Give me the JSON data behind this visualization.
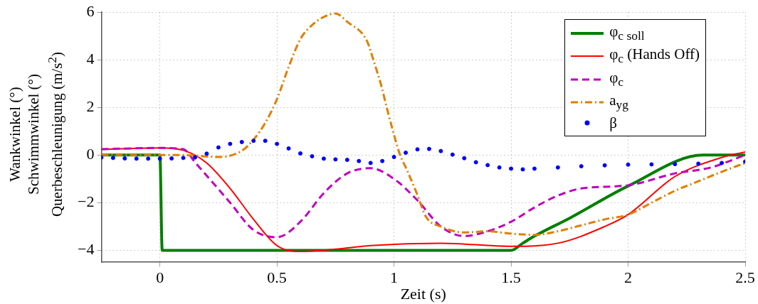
{
  "chart_data": {
    "type": "line",
    "xlabel": "Zeit (s)",
    "ylabel": "Wankwinkel (°)\nSchwimmwinkel (°)\nQuerbeschleunigung (m/s$^{2}$)",
    "xlim": [
      -0.25,
      2.5
    ],
    "xticks": [
      0,
      0.5,
      1,
      1.5,
      2,
      2.5
    ],
    "ylim": [
      -4.5,
      6
    ],
    "yticks": [
      -4,
      -2,
      0,
      2,
      4,
      6
    ],
    "grid": true,
    "legend": "top right",
    "series": [
      {
        "name": "φ$_{c soll}$",
        "color": "#007f00",
        "line_style": "solid",
        "marker": "none",
        "x": [
          -0.25,
          0,
          0.01,
          1.5,
          1.55,
          1.6,
          1.75,
          2,
          2.32,
          2.5
        ],
        "values": [
          0,
          0,
          -4,
          -4,
          -3.7,
          -3.4,
          -2.65,
          -1.3,
          0,
          0
        ]
      },
      {
        "name": "φ$_{c}$ (Hands Off)",
        "color": "#ff0000",
        "line_style": "solid",
        "marker": "none",
        "x": [
          -0.25,
          0,
          0.1,
          0.2,
          0.3,
          0.4,
          0.5,
          0.6,
          0.75,
          0.9,
          1.2,
          1.5,
          1.7,
          1.9,
          2,
          2.2,
          2.4,
          2.5
        ],
        "values": [
          0.24,
          0.3,
          0.2,
          -0.33,
          -1.4,
          -2.7,
          -3.8,
          -4.05,
          -3.95,
          -3.8,
          -3.7,
          -3.83,
          -3.7,
          -3,
          -2.5,
          -0.9,
          -0.1,
          0.13
        ]
      },
      {
        "name": "φ$_{c}$",
        "color": "#bf00bf",
        "line_style": "dashed",
        "marker": "none",
        "x": [
          -0.25,
          0,
          0.1,
          0.15,
          0.3,
          0.4,
          0.5,
          0.6,
          0.7,
          0.8,
          0.9,
          1,
          1.1,
          1.2,
          1.3,
          1.4,
          1.5,
          1.6,
          1.7,
          1.8,
          2,
          2.2,
          2.35,
          2.5
        ],
        "values": [
          0.25,
          0.3,
          0.25,
          -0.3,
          -2,
          -3.15,
          -3.45,
          -2.8,
          -1.6,
          -0.77,
          -0.55,
          -1,
          -1.9,
          -3,
          -3.4,
          -3.2,
          -2.8,
          -2.2,
          -1.7,
          -1.4,
          -1.27,
          -0.77,
          -0.53,
          0
        ]
      },
      {
        "name": "a$_{yg}$",
        "color": "#df7f00",
        "line_style": "dashdot",
        "marker": "none",
        "x": [
          -0.25,
          0.1,
          0.25,
          0.35,
          0.4,
          0.45,
          0.5,
          0.55,
          0.6,
          0.65,
          0.7,
          0.75,
          0.8,
          0.884,
          0.915,
          0.945,
          0.97,
          0.994,
          1.024,
          1.055,
          1.097,
          1.137,
          1.2,
          1.3,
          1.4,
          1.5,
          1.6,
          1.7,
          1.8,
          1.9,
          2,
          2.1,
          2.2,
          2.3,
          2.4,
          2.5
        ],
        "values": [
          0,
          0,
          -0.08,
          0.18,
          0.65,
          1.35,
          2.35,
          3.7,
          4.87,
          5.46,
          5.8,
          5.95,
          5.6,
          4.8,
          3.9,
          2.94,
          1.96,
          1.07,
          0.06,
          -0.62,
          -1.6,
          -2.6,
          -3,
          -3.25,
          -3.2,
          -3.3,
          -3.35,
          -3.2,
          -2.95,
          -2.7,
          -2.5,
          -2,
          -1.5,
          -1.1,
          -0.7,
          -0.33
        ]
      },
      {
        "name": "β",
        "color": "#0000ff",
        "type": "scatter",
        "marker": "circle",
        "x": [
          -0.25,
          -0.2,
          -0.15,
          -0.1,
          -0.05,
          0,
          0.05,
          0.1,
          0.15,
          0.2,
          0.25,
          0.3,
          0.35,
          0.4,
          0.45,
          0.5,
          0.55,
          0.6,
          0.65,
          0.7,
          0.75,
          0.8,
          0.85,
          0.9,
          0.95,
          1,
          1.05,
          1.1,
          1.15,
          1.2,
          1.25,
          1.3,
          1.35,
          1.4,
          1.45,
          1.5,
          1.55,
          1.6,
          1.7,
          1.8,
          1.9,
          2,
          2.1,
          2.2,
          2.3,
          2.4,
          2.5
        ],
        "values": [
          -0.1,
          -0.12,
          -0.14,
          -0.15,
          -0.15,
          -0.15,
          -0.14,
          -0.12,
          -0.1,
          0.06,
          0.32,
          0.47,
          0.55,
          0.6,
          0.6,
          0.47,
          0.28,
          0.07,
          -0.05,
          -0.15,
          -0.18,
          -0.2,
          -0.25,
          -0.33,
          -0.25,
          -0.08,
          0.1,
          0.24,
          0.26,
          0.17,
          0.02,
          -0.13,
          -0.3,
          -0.42,
          -0.52,
          -0.57,
          -0.6,
          -0.57,
          -0.52,
          -0.47,
          -0.43,
          -0.4,
          -0.39,
          -0.38,
          -0.36,
          -0.33,
          -0.27
        ]
      }
    ]
  }
}
